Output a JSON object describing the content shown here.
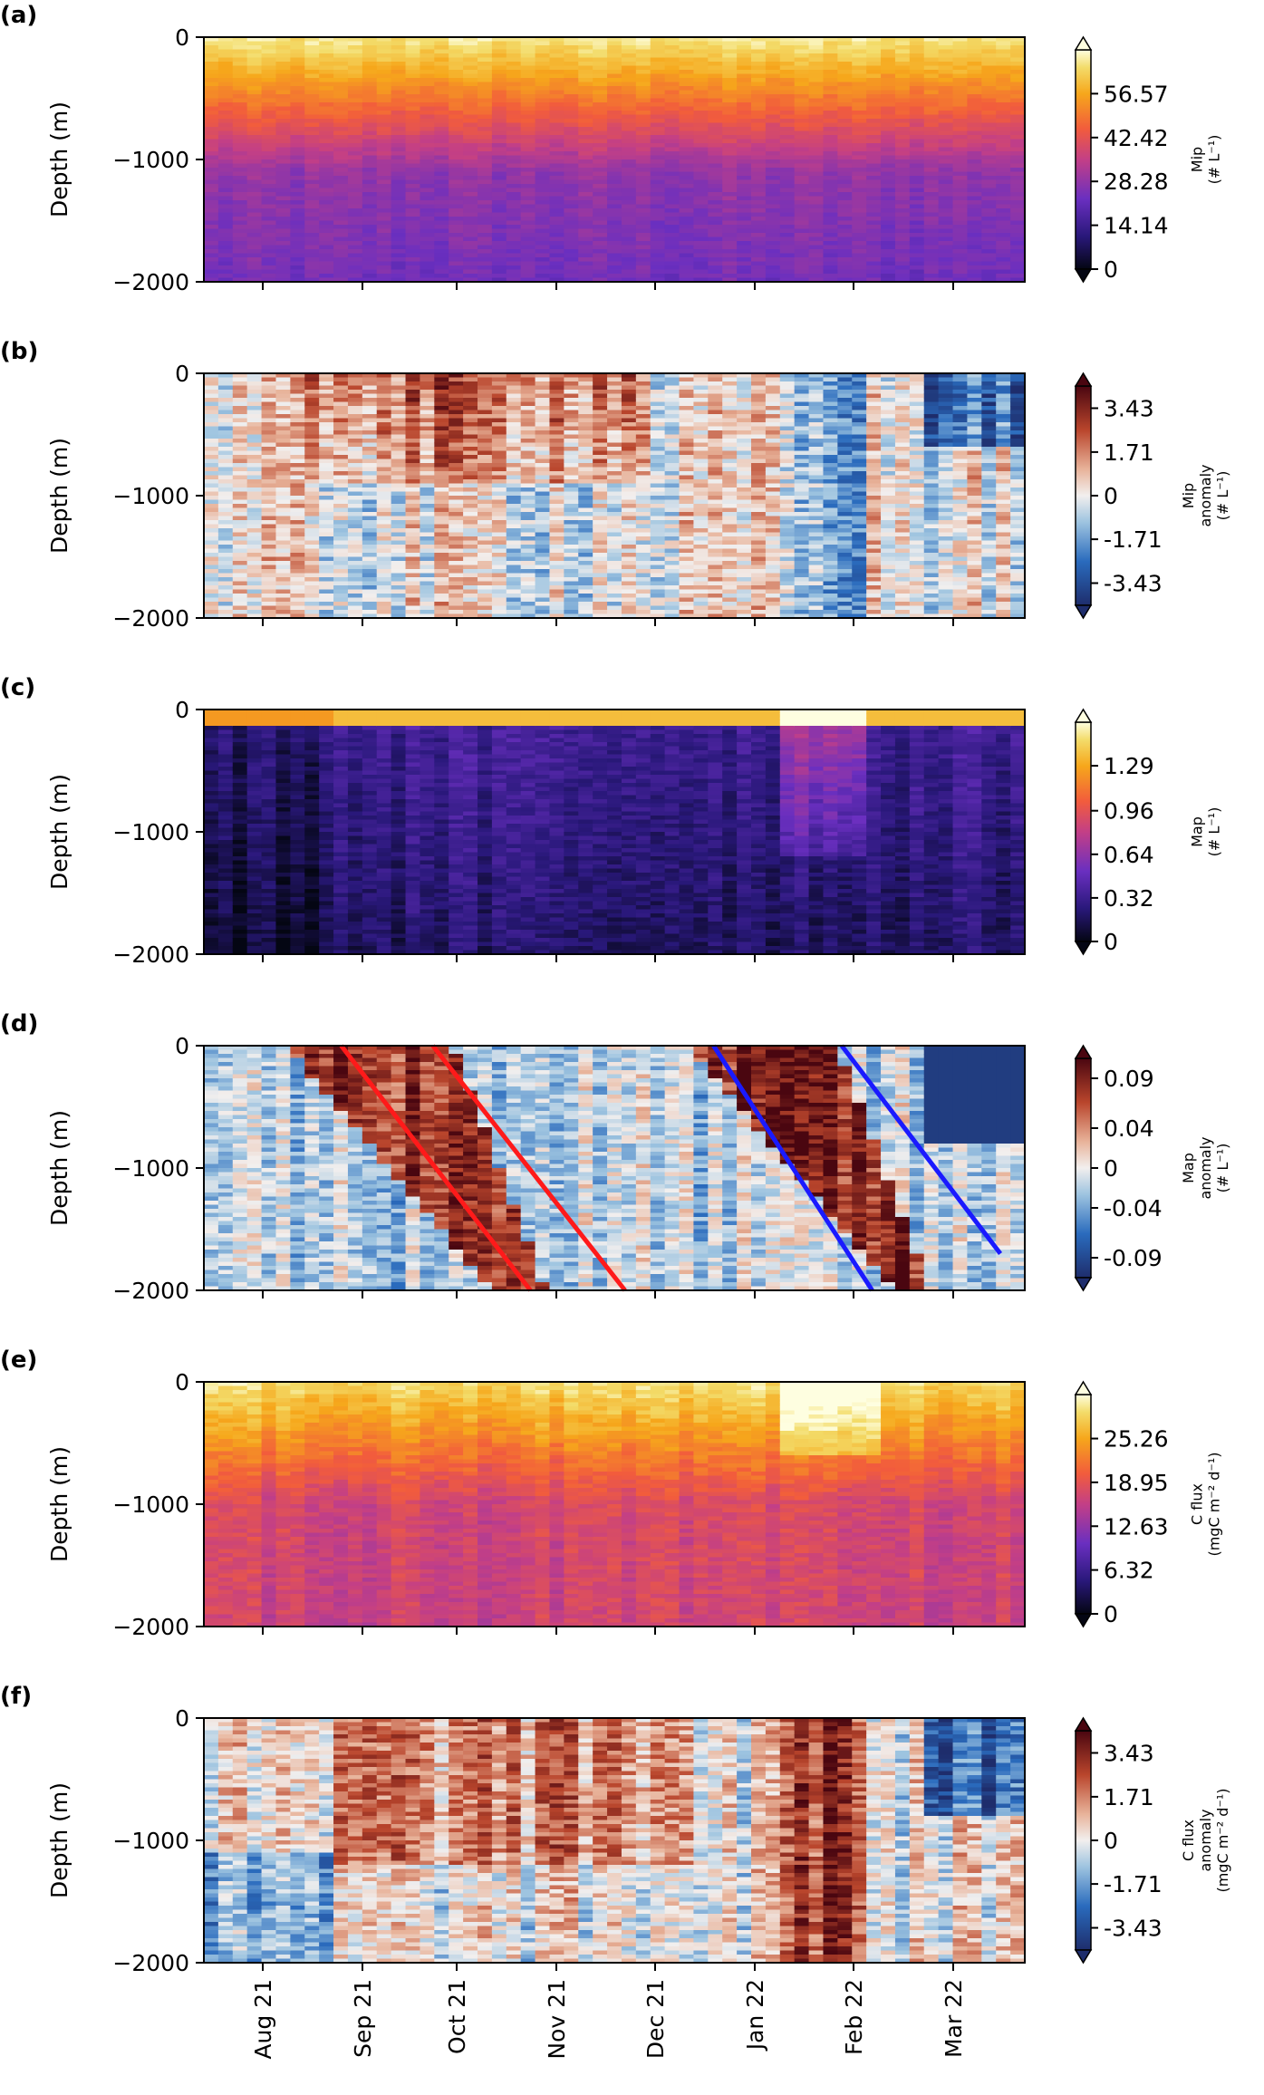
{
  "figure": {
    "x_axis": {
      "tick_labels": [
        "Aug 21",
        "Sep 21",
        "Oct 21",
        "Nov 21",
        "Dec 21",
        "Jan 22",
        "Feb 22",
        "Mar 22"
      ]
    },
    "y_axis": {
      "label": "Depth (m)",
      "tick_labels": [
        "0",
        "−1000",
        "−2000"
      ],
      "ylim": [
        -2000,
        0
      ]
    }
  },
  "chart_data": [
    {
      "panel": "(a)",
      "type": "heatmap",
      "ylabel": "Depth (m)",
      "x_tick_labels": [
        "Aug 21",
        "Sep 21",
        "Oct 21",
        "Nov 21",
        "Dec 21",
        "Jan 22",
        "Feb 22",
        "Mar 22"
      ],
      "ylim": [
        -2000,
        0
      ],
      "colormap": "thermal (dark navy → purple → orange → pale yellow)",
      "colorbar": {
        "label_lines": [
          "Mip",
          "(# L⁻¹)"
        ],
        "ticks": [
          "56.57",
          "42.42",
          "28.28",
          "14.14",
          "0"
        ],
        "values": [
          56.57,
          42.42,
          28.28,
          14.14,
          0
        ],
        "range": [
          0,
          70.7
        ]
      },
      "pattern": "high values (>50) in the upper ~300 m, decreasing to ~10-15 below 1000 m"
    },
    {
      "panel": "(b)",
      "type": "heatmap",
      "ylabel": "Depth (m)",
      "x_tick_labels": [
        "Aug 21",
        "Sep 21",
        "Oct 21",
        "Nov 21",
        "Dec 21",
        "Jan 22",
        "Feb 22",
        "Mar 22"
      ],
      "ylim": [
        -2000,
        0
      ],
      "colormap": "diverging blue – white – dark red",
      "colorbar": {
        "label_lines": [
          "Mip",
          "anomaly",
          "(# L⁻¹)"
        ],
        "ticks": [
          "3.43",
          "1.71",
          "0",
          "-1.71",
          "-3.43"
        ],
        "values": [
          3.43,
          1.71,
          0,
          -1.71,
          -3.43
        ],
        "range": [
          -4.3,
          4.3
        ]
      },
      "pattern": "positive anomalies concentrated Sep–Dec in the upper 800 m"
    },
    {
      "panel": "(c)",
      "type": "heatmap",
      "ylabel": "Depth (m)",
      "x_tick_labels": [
        "Aug 21",
        "Sep 21",
        "Oct 21",
        "Nov 21",
        "Dec 21",
        "Jan 22",
        "Feb 22",
        "Mar 22"
      ],
      "ylim": [
        -2000,
        0
      ],
      "colormap": "thermal",
      "colorbar": {
        "label_lines": [
          "Map",
          "(# L⁻¹)"
        ],
        "ticks": [
          "1.29",
          "0.96",
          "0.64",
          "0.32",
          "0"
        ],
        "values": [
          1.29,
          0.96,
          0.64,
          0.32,
          0
        ],
        "range": [
          0,
          1.61
        ]
      },
      "pattern": "high values only near the surface; enhanced subsurface values in late Jan–Feb 22"
    },
    {
      "panel": "(d)",
      "type": "heatmap",
      "ylabel": "Depth (m)",
      "x_tick_labels": [
        "Aug 21",
        "Sep 21",
        "Oct 21",
        "Nov 21",
        "Dec 21",
        "Jan 22",
        "Feb 22",
        "Mar 22"
      ],
      "ylim": [
        -2000,
        0
      ],
      "colormap": "diverging blue – white – dark red",
      "colorbar": {
        "label_lines": [
          "Map",
          "anomaly",
          "(# L⁻¹)"
        ],
        "ticks": [
          "0.09",
          "0.04",
          "0",
          "-0.04",
          "-0.09"
        ],
        "values": [
          0.09,
          0.04,
          0,
          -0.04,
          -0.09
        ],
        "range": [
          -0.11,
          0.11
        ]
      },
      "lines": [
        {
          "color": "#ff1a1a",
          "from": {
            "date": "2021-08-27",
            "depth": 0
          },
          "to": {
            "date": "2021-10-28",
            "depth": -2000
          }
        },
        {
          "color": "#ff1a1a",
          "from": {
            "date": "2021-09-26",
            "depth": 0
          },
          "to": {
            "date": "2021-11-28",
            "depth": -2000
          }
        },
        {
          "color": "#1a1aff",
          "from": {
            "date": "2021-12-27",
            "depth": 0
          },
          "to": {
            "date": "2022-02-17",
            "depth": -2000
          }
        },
        {
          "color": "#1a1aff",
          "from": {
            "date": "2022-02-07",
            "depth": 0
          },
          "to": {
            "date": "2022-03-31",
            "depth": -1700
          }
        }
      ],
      "pattern": "sinking bands of positive anomaly, Sep–Nov 21 and Jan–Feb 22"
    },
    {
      "panel": "(e)",
      "type": "heatmap",
      "ylabel": "Depth (m)",
      "x_tick_labels": [
        "Aug 21",
        "Sep 21",
        "Oct 21",
        "Nov 21",
        "Dec 21",
        "Jan 22",
        "Feb 22",
        "Mar 22"
      ],
      "ylim": [
        -2000,
        0
      ],
      "colormap": "thermal",
      "colorbar": {
        "label_lines": [
          "C flux",
          "(mgC m⁻² d⁻¹)"
        ],
        "ticks": [
          "25.26",
          "18.95",
          "12.63",
          "6.32",
          "0"
        ],
        "values": [
          25.26,
          18.95,
          12.63,
          6.32,
          0
        ],
        "range": [
          0,
          31.6
        ]
      },
      "pattern": "high flux in the upper 500 m, ~10-15 at depth; strong signal late Jan–Feb 22"
    },
    {
      "panel": "(f)",
      "type": "heatmap",
      "ylabel": "Depth (m)",
      "x_tick_labels": [
        "Aug 21",
        "Sep 21",
        "Oct 21",
        "Nov 21",
        "Dec 21",
        "Jan 22",
        "Feb 22",
        "Mar 22"
      ],
      "ylim": [
        -2000,
        0
      ],
      "colormap": "diverging blue – white – dark red",
      "colorbar": {
        "label_lines": [
          "C flux",
          "anomaly",
          "(mgC m⁻² d⁻¹)"
        ],
        "ticks": [
          "3.43",
          "1.71",
          "0",
          "-1.71",
          "-3.43"
        ],
        "values": [
          3.43,
          1.71,
          0,
          -1.71,
          -3.43
        ],
        "range": [
          -4.3,
          4.3
        ]
      },
      "pattern": "positive anomaly columns Sep–Dec 21 and a strong one in late Jan–Feb 22"
    }
  ]
}
